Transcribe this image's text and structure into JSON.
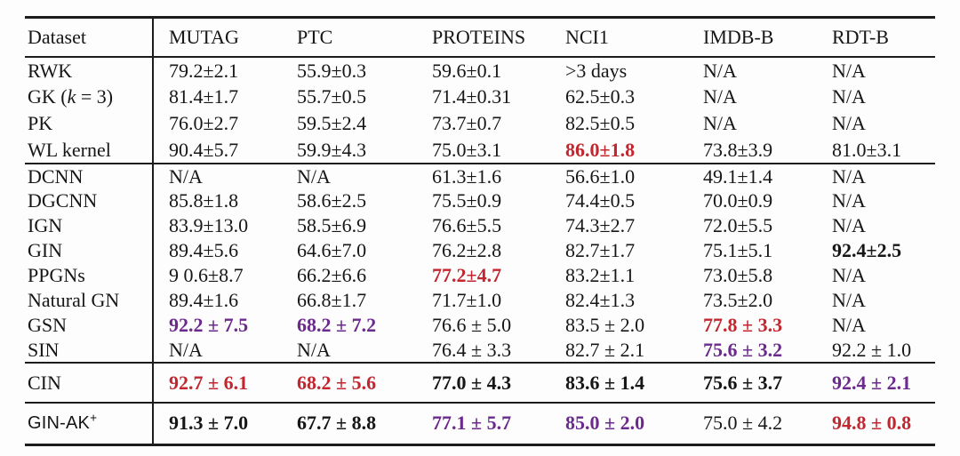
{
  "colors": {
    "accent_red": "#c22730",
    "accent_purple": "#6b2a8c",
    "rule": "#1c1c1c"
  },
  "table": {
    "columns": [
      "Dataset",
      "MUTAG",
      "PTC",
      "PROTEINS",
      "NCI1",
      "IMDB-B",
      "RDT-B"
    ],
    "sections": [
      {
        "id": "kernels",
        "rows": [
          {
            "method": "RWK",
            "cells": [
              {
                "v": "79.2±2.1"
              },
              {
                "v": "55.9±0.3"
              },
              {
                "v": "59.6±0.1"
              },
              {
                "v": ">3 days"
              },
              {
                "v": "N/A"
              },
              {
                "v": "N/A"
              }
            ]
          },
          {
            "method": [
              {
                "t": "GK ("
              },
              {
                "t": "k",
                "italic": true
              },
              {
                "t": " = 3)"
              }
            ],
            "cells": [
              {
                "v": "81.4±1.7"
              },
              {
                "v": "55.7±0.5"
              },
              {
                "v": "71.4±0.31"
              },
              {
                "v": "62.5±0.3"
              },
              {
                "v": "N/A"
              },
              {
                "v": "N/A"
              }
            ]
          },
          {
            "method": "PK",
            "cells": [
              {
                "v": "76.0±2.7"
              },
              {
                "v": "59.5±2.4"
              },
              {
                "v": "73.7±0.7"
              },
              {
                "v": "82.5±0.5"
              },
              {
                "v": "N/A"
              },
              {
                "v": "N/A"
              }
            ]
          },
          {
            "method": "WL kernel",
            "cells": [
              {
                "v": "90.4±5.7"
              },
              {
                "v": "59.9±4.3"
              },
              {
                "v": "75.0±3.1"
              },
              {
                "v": "86.0±1.8",
                "s": "red"
              },
              {
                "v": "73.8±3.9"
              },
              {
                "v": "81.0±3.1"
              }
            ]
          }
        ]
      },
      {
        "id": "gnns",
        "rows": [
          {
            "method": "DCNN",
            "cells": [
              {
                "v": "N/A"
              },
              {
                "v": "N/A"
              },
              {
                "v": "61.3±1.6"
              },
              {
                "v": "56.6±1.0"
              },
              {
                "v": "49.1±1.4"
              },
              {
                "v": "N/A"
              }
            ]
          },
          {
            "method": "DGCNN",
            "cells": [
              {
                "v": "85.8±1.8"
              },
              {
                "v": "58.6±2.5"
              },
              {
                "v": "75.5±0.9"
              },
              {
                "v": "74.4±0.5"
              },
              {
                "v": "70.0±0.9"
              },
              {
                "v": "N/A"
              }
            ]
          },
          {
            "method": "IGN",
            "cells": [
              {
                "v": "83.9±13.0"
              },
              {
                "v": "58.5±6.9"
              },
              {
                "v": "76.6±5.5"
              },
              {
                "v": "74.3±2.7"
              },
              {
                "v": "72.0±5.5"
              },
              {
                "v": "N/A"
              }
            ]
          },
          {
            "method": "GIN",
            "cells": [
              {
                "v": "89.4±5.6"
              },
              {
                "v": "64.6±7.0"
              },
              {
                "v": "76.2±2.8"
              },
              {
                "v": "82.7±1.7"
              },
              {
                "v": "75.1±5.1"
              },
              {
                "v": "92.4±2.5",
                "s": "b"
              }
            ]
          },
          {
            "method": "PPGNs",
            "cells": [
              {
                "v": "9 0.6±8.7"
              },
              {
                "v": "66.2±6.6"
              },
              {
                "v": "77.2±4.7",
                "s": "red"
              },
              {
                "v": "83.2±1.1"
              },
              {
                "v": "73.0±5.8"
              },
              {
                "v": "N/A"
              }
            ]
          },
          {
            "method": "Natural GN",
            "cells": [
              {
                "v": "89.4±1.6"
              },
              {
                "v": "66.8±1.7"
              },
              {
                "v": "71.7±1.0"
              },
              {
                "v": "82.4±1.3"
              },
              {
                "v": "73.5±2.0"
              },
              {
                "v": "N/A"
              }
            ]
          },
          {
            "method": "GSN",
            "cells": [
              {
                "v": "92.2 ± 7.5",
                "s": "purple"
              },
              {
                "v": "68.2 ± 7.2",
                "s": "purple"
              },
              {
                "v": "76.6 ± 5.0"
              },
              {
                "v": "83.5 ± 2.0"
              },
              {
                "v": "77.8 ± 3.3",
                "s": "red"
              },
              {
                "v": "N/A"
              }
            ]
          },
          {
            "method": "SIN",
            "cells": [
              {
                "v": "N/A"
              },
              {
                "v": "N/A"
              },
              {
                "v": "76.4 ± 3.3"
              },
              {
                "v": "82.7 ± 2.1"
              },
              {
                "v": "75.6 ± 3.2",
                "s": "purple"
              },
              {
                "v": "92.2 ± 1.0"
              }
            ]
          }
        ]
      },
      {
        "id": "cin",
        "rows": [
          {
            "method": "CIN",
            "cells": [
              {
                "v": "92.7 ± 6.1",
                "s": "red"
              },
              {
                "v": "68.2 ± 5.6",
                "s": "red"
              },
              {
                "v": "77.0 ± 4.3",
                "s": "b"
              },
              {
                "v": "83.6 ± 1.4",
                "s": "b"
              },
              {
                "v": "75.6 ± 3.7",
                "s": "b"
              },
              {
                "v": "92.4 ± 2.1",
                "s": "purple"
              }
            ]
          }
        ]
      },
      {
        "id": "ginak",
        "rows": [
          {
            "method": [
              {
                "t": "GIN-AK"
              },
              {
                "t": "+",
                "sup": true
              }
            ],
            "sans": true,
            "cells": [
              {
                "v": "91.3 ± 7.0",
                "s": "b"
              },
              {
                "v": "67.7 ± 8.8",
                "s": "b"
              },
              {
                "v": "77.1 ± 5.7",
                "s": "purple"
              },
              {
                "v": "85.0 ± 2.0",
                "s": "purple"
              },
              {
                "v": "75.0 ± 4.2"
              },
              {
                "v": "94.8 ± 0.8",
                "s": "red"
              }
            ]
          }
        ]
      }
    ]
  }
}
